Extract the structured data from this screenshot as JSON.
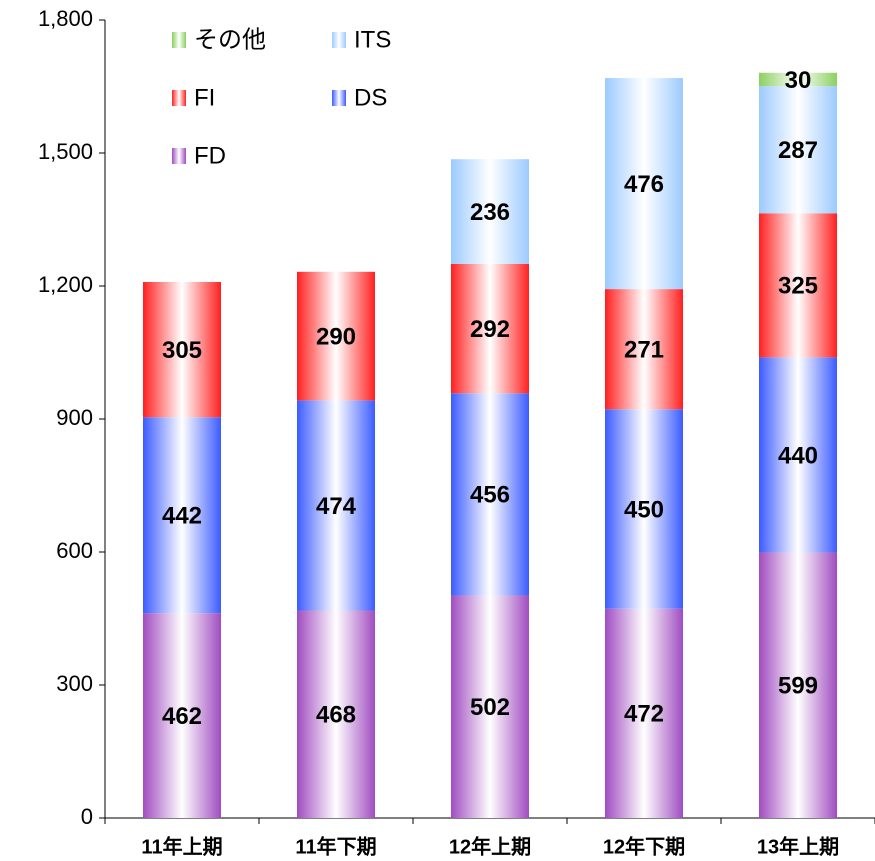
{
  "chart_data": {
    "type": "stacked_bar",
    "categories": [
      "11年上期",
      "11年下期",
      "12年上期",
      "12年下期",
      "13年上期"
    ],
    "series": [
      {
        "name": "FD",
        "color": "#a04cc0",
        "values": [
          462,
          468,
          502,
          472,
          599
        ]
      },
      {
        "name": "DS",
        "color": "#3c5cff",
        "values": [
          442,
          474,
          456,
          450,
          440
        ]
      },
      {
        "name": "FI",
        "color": "#ff2020",
        "values": [
          305,
          290,
          292,
          271,
          325
        ]
      },
      {
        "name": "ITS",
        "color": "#9ccaff",
        "values": [
          null,
          null,
          236,
          476,
          287
        ]
      },
      {
        "name": "その他",
        "color": "#8cd060",
        "values": [
          null,
          null,
          null,
          null,
          30
        ]
      }
    ],
    "ylim": [
      0,
      1800
    ],
    "yticks": [
      0,
      300,
      600,
      900,
      {
        "value": 1200,
        "label": "1,200"
      },
      {
        "value": 1500,
        "label": "1,500"
      },
      {
        "value": 1800,
        "label": "1,800"
      }
    ],
    "legend": "top-left"
  }
}
